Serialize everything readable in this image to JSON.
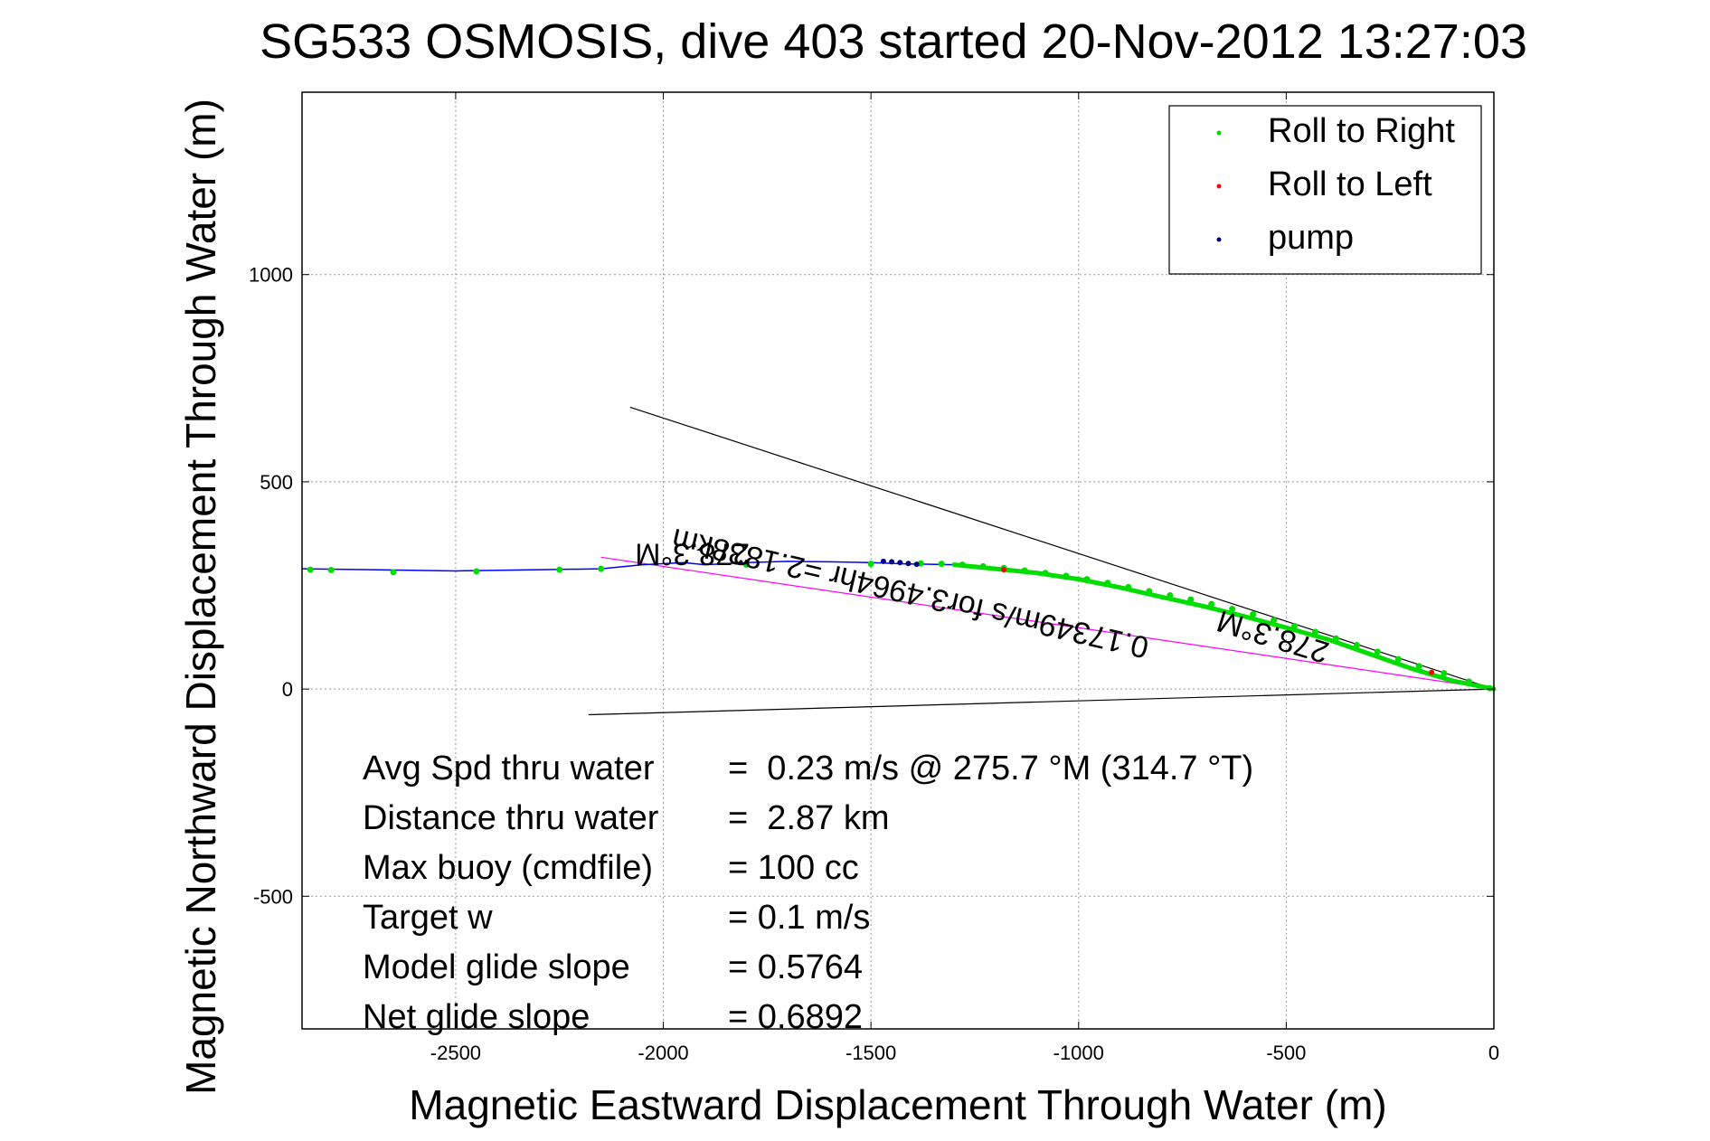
{
  "chart_data": {
    "type": "scatter",
    "title": "SG533 OSMOSIS, dive 403 started 20-Nov-2012 13:27:03",
    "xlabel": "Magnetic Eastward Displacement Through Water (m)",
    "ylabel": "Magnetic Northward Displacement Through Water (m)",
    "xlim": [
      -2870,
      0
    ],
    "ylim": [
      -820,
      1440
    ],
    "xticks": [
      -2500,
      -2000,
      -1500,
      -1000,
      -500,
      0
    ],
    "yticks": [
      -500,
      0,
      500,
      1000
    ],
    "xtick_labels": [
      "-2500",
      "-2000",
      "-1500",
      "-1000",
      "-500",
      "0"
    ],
    "ytick_labels": [
      "-500",
      "0",
      "500",
      "1000"
    ],
    "grid": true,
    "legend_position": "top-right",
    "legend": [
      {
        "label": "Roll to Right",
        "color": "#00dd00"
      },
      {
        "label": "Roll to Left",
        "color": "#ff0000"
      },
      {
        "label": "pump",
        "color": "#000080"
      }
    ],
    "track": {
      "color": "#0000ff",
      "x": [
        -2870,
        -2700,
        -2500,
        -2300,
        -2150,
        -2050,
        -1950,
        -1900,
        -1800,
        -1700,
        -1600,
        -1500,
        -1420,
        -1300,
        -1200,
        -1100,
        -1000,
        -900,
        -800,
        -700,
        -600,
        -500,
        -400,
        -300,
        -200,
        -100,
        0
      ],
      "y": [
        290,
        288,
        285,
        288,
        290,
        300,
        305,
        300,
        305,
        308,
        307,
        305,
        302,
        300,
        290,
        280,
        265,
        245,
        222,
        200,
        175,
        148,
        120,
        85,
        50,
        20,
        0
      ]
    },
    "roll_right": {
      "x": [
        -2850,
        -2800,
        -2650,
        -2450,
        -2250,
        -2150,
        -1800,
        -1500,
        -1380,
        -1330,
        -1280,
        -1230,
        -1180,
        -1130,
        -1080,
        -1030,
        -980,
        -930,
        -880,
        -830,
        -780,
        -730,
        -680,
        -630,
        -580,
        -530,
        -480,
        -430,
        -380,
        -330,
        -280,
        -230,
        -180,
        -120,
        -60,
        -10
      ],
      "y": [
        288,
        287,
        282,
        284,
        288,
        290,
        300,
        302,
        303,
        302,
        300,
        296,
        292,
        286,
        280,
        273,
        265,
        256,
        246,
        236,
        226,
        216,
        205,
        193,
        180,
        166,
        152,
        138,
        122,
        106,
        90,
        72,
        55,
        38,
        18,
        2
      ]
    },
    "roll_left": {
      "x": [
        -1180,
        -150
      ],
      "y": [
        288,
        40
      ]
    },
    "pump": {
      "x": [
        -1470,
        -1450,
        -1430,
        -1410,
        -1390
      ],
      "y": [
        308,
        307,
        305,
        303,
        301
      ]
    },
    "lines": [
      {
        "name": "upper",
        "color": "#000000",
        "x": [
          -2080,
          0
        ],
        "y": [
          680,
          0
        ]
      },
      {
        "name": "lower",
        "color": "#000000",
        "x": [
          -2180,
          0
        ],
        "y": [
          -62,
          0
        ]
      },
      {
        "name": "fit",
        "color": "#ff00ff",
        "x": [
          -2150,
          0
        ],
        "y": [
          318,
          0
        ]
      }
    ],
    "annotations": [
      {
        "text": "278.3°M",
        "x": -1930,
        "y": 350,
        "rotation": 180
      },
      {
        "text": "0.17349m/s for3.4964hr =2.1838km",
        "x": -1400,
        "y": 255,
        "rotation": 193
      },
      {
        "text": "278.3°M",
        "x": -525,
        "y": 150,
        "rotation": 197
      }
    ],
    "stats": [
      {
        "label": "Avg Spd thru water",
        "value": "=  0.23 m/s @ 275.7 °M (314.7 °T)"
      },
      {
        "label": "Distance thru water",
        "value": "=  2.87 km"
      },
      {
        "label": "Max buoy (cmdfile)",
        "value": "= 100 cc"
      },
      {
        "label": "Target w",
        "value": "= 0.1 m/s"
      },
      {
        "label": "Model glide slope",
        "value": "= 0.5764"
      },
      {
        "label": "Net glide slope",
        "value": "= 0.6892"
      }
    ]
  }
}
